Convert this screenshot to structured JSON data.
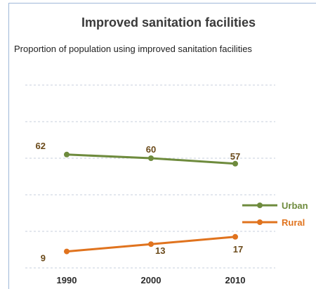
{
  "chart_data": {
    "type": "line",
    "title": "Improved sanitation facilities",
    "subtitle": "Proportion of population using improved sanitation facilities",
    "x": [
      "1990",
      "2000",
      "2010"
    ],
    "series": [
      {
        "name": "Urban",
        "values": [
          62,
          60,
          57
        ],
        "color": "#6e8b3d"
      },
      {
        "name": "Rural",
        "values": [
          9,
          13,
          17
        ],
        "color": "#e0731e"
      }
    ],
    "ylim": [
      0,
      100
    ],
    "grid": true,
    "grid_style": "dashed",
    "legend_position": "right",
    "label_color": "#6b4a1a",
    "gridline_color": "#c7cfdc"
  }
}
